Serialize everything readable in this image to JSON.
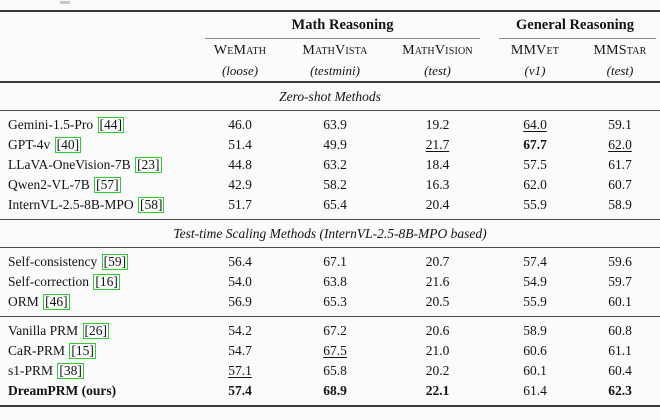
{
  "page": {
    "background": "#fbfbfb",
    "text_color": "#131313",
    "citation_box_color": "#2fcc2f"
  },
  "table": {
    "group_headers": [
      {
        "label": "Math Reasoning"
      },
      {
        "label": "General Reasoning"
      }
    ],
    "columns": [
      {
        "name": "WeMath",
        "subtitle": "(loose)"
      },
      {
        "name": "MathVista",
        "subtitle": "(testmini)"
      },
      {
        "name": "MathVision",
        "subtitle": "(test)"
      },
      {
        "name": "MMVet",
        "subtitle": "(v1)"
      },
      {
        "name": "MMStar",
        "subtitle": "(test)"
      }
    ],
    "row_groups": [
      {
        "section_title": "Zero-shot Methods",
        "rows": [
          {
            "method": "Gemini-1.5-Pro",
            "cite": "44",
            "bold_method": false,
            "values": [
              {
                "v": "46.0",
                "style": "normal"
              },
              {
                "v": "63.9",
                "style": "normal"
              },
              {
                "v": "19.2",
                "style": "normal"
              },
              {
                "v": "64.0",
                "style": "underline"
              },
              {
                "v": "59.1",
                "style": "normal"
              }
            ]
          },
          {
            "method": "GPT-4v",
            "cite": "40",
            "bold_method": false,
            "values": [
              {
                "v": "51.4",
                "style": "normal"
              },
              {
                "v": "49.9",
                "style": "normal"
              },
              {
                "v": "21.7",
                "style": "underline"
              },
              {
                "v": "67.7",
                "style": "bold"
              },
              {
                "v": "62.0",
                "style": "underline"
              }
            ]
          },
          {
            "method": "LLaVA-OneVision-7B",
            "cite": "23",
            "bold_method": false,
            "values": [
              {
                "v": "44.8",
                "style": "normal"
              },
              {
                "v": "63.2",
                "style": "normal"
              },
              {
                "v": "18.4",
                "style": "normal"
              },
              {
                "v": "57.5",
                "style": "normal"
              },
              {
                "v": "61.7",
                "style": "normal"
              }
            ]
          },
          {
            "method": "Qwen2-VL-7B",
            "cite": "57",
            "bold_method": false,
            "values": [
              {
                "v": "42.9",
                "style": "normal"
              },
              {
                "v": "58.2",
                "style": "normal"
              },
              {
                "v": "16.3",
                "style": "normal"
              },
              {
                "v": "62.0",
                "style": "normal"
              },
              {
                "v": "60.7",
                "style": "normal"
              }
            ]
          },
          {
            "method": "InternVL-2.5-8B-MPO",
            "cite": "58",
            "bold_method": false,
            "values": [
              {
                "v": "51.7",
                "style": "normal"
              },
              {
                "v": "65.4",
                "style": "normal"
              },
              {
                "v": "20.4",
                "style": "normal"
              },
              {
                "v": "55.9",
                "style": "normal"
              },
              {
                "v": "58.9",
                "style": "normal"
              }
            ]
          }
        ]
      },
      {
        "section_title": "Test-time Scaling Methods (InternVL-2.5-8B-MPO based)",
        "rows": [
          {
            "method": "Self-consistency",
            "cite": "59",
            "bold_method": false,
            "values": [
              {
                "v": "56.4",
                "style": "normal"
              },
              {
                "v": "67.1",
                "style": "normal"
              },
              {
                "v": "20.7",
                "style": "normal"
              },
              {
                "v": "57.4",
                "style": "normal"
              },
              {
                "v": "59.6",
                "style": "normal"
              }
            ]
          },
          {
            "method": "Self-correction",
            "cite": "16",
            "bold_method": false,
            "values": [
              {
                "v": "54.0",
                "style": "normal"
              },
              {
                "v": "63.8",
                "style": "normal"
              },
              {
                "v": "21.6",
                "style": "normal"
              },
              {
                "v": "54.9",
                "style": "normal"
              },
              {
                "v": "59.7",
                "style": "normal"
              }
            ]
          },
          {
            "method": "ORM",
            "cite": "46",
            "bold_method": false,
            "values": [
              {
                "v": "56.9",
                "style": "normal"
              },
              {
                "v": "65.3",
                "style": "normal"
              },
              {
                "v": "20.5",
                "style": "normal"
              },
              {
                "v": "55.9",
                "style": "normal"
              },
              {
                "v": "60.1",
                "style": "normal"
              }
            ]
          }
        ]
      },
      {
        "section_title": null,
        "rows": [
          {
            "method": "Vanilla PRM",
            "cite": "26",
            "bold_method": false,
            "values": [
              {
                "v": "54.2",
                "style": "normal"
              },
              {
                "v": "67.2",
                "style": "normal"
              },
              {
                "v": "20.6",
                "style": "normal"
              },
              {
                "v": "58.9",
                "style": "normal"
              },
              {
                "v": "60.8",
                "style": "normal"
              }
            ]
          },
          {
            "method": "CaR-PRM",
            "cite": "15",
            "bold_method": false,
            "values": [
              {
                "v": "54.7",
                "style": "normal"
              },
              {
                "v": "67.5",
                "style": "underline"
              },
              {
                "v": "21.0",
                "style": "normal"
              },
              {
                "v": "60.6",
                "style": "normal"
              },
              {
                "v": "61.1",
                "style": "normal"
              }
            ]
          },
          {
            "method": "s1-PRM",
            "cite": "38",
            "bold_method": false,
            "values": [
              {
                "v": "57.1",
                "style": "underline"
              },
              {
                "v": "65.8",
                "style": "normal"
              },
              {
                "v": "20.2",
                "style": "normal"
              },
              {
                "v": "60.1",
                "style": "normal"
              },
              {
                "v": "60.4",
                "style": "normal"
              }
            ]
          },
          {
            "method": "DreamPRM (ours)",
            "cite": null,
            "bold_method": true,
            "values": [
              {
                "v": "57.4",
                "style": "bold"
              },
              {
                "v": "68.9",
                "style": "bold"
              },
              {
                "v": "22.1",
                "style": "bold"
              },
              {
                "v": "61.4",
                "style": "normal"
              },
              {
                "v": "62.3",
                "style": "bold"
              }
            ]
          }
        ]
      }
    ]
  }
}
